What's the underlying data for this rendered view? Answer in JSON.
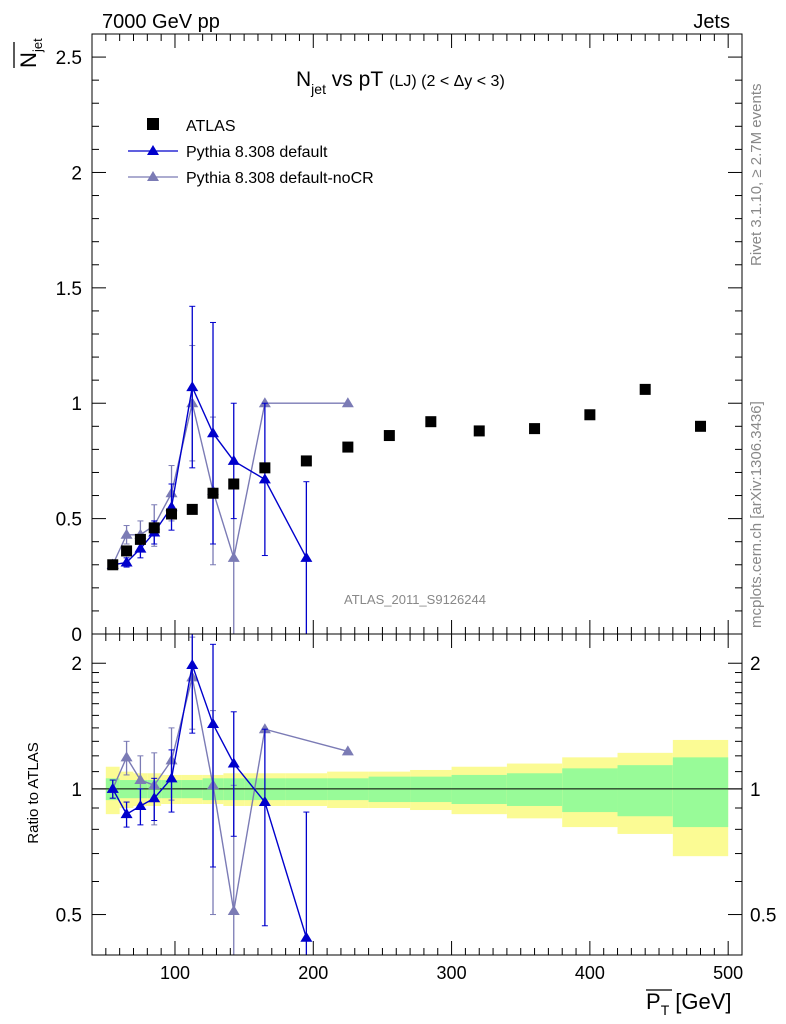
{
  "header": {
    "left": "7000 GeV pp",
    "right": "Jets"
  },
  "chart_data": {
    "type": "scatter",
    "title": "N_jet vs pT (LJ) (2 < Δy < 3)",
    "title_main": "N",
    "title_sub": "jet",
    "title_vs": " vs pT",
    "title_detail": "(LJ) (2 < Δy < 3)",
    "ylabel": "N_jet",
    "ylabel_main": "N",
    "ylabel_sub": "jet",
    "ratio_ylabel": "Ratio to ATLAS",
    "xlabel": "P_T [GeV]",
    "xlabel_main": "P",
    "xlabel_sub": "T",
    "xlabel_unit": "[GeV]",
    "watermark": "ATLAS_2011_S9126244",
    "side_text_top": "Rivet 3.1.10, ≥ 2.7M events",
    "side_text_bottom": "mcplots.cern.ch [arXiv:1306.3436]",
    "xlim": [
      40,
      510
    ],
    "ylim": [
      0,
      2.6
    ],
    "ratio_ylim": [
      0.4,
      2.35
    ],
    "ratio_log": true,
    "x_ticks": [
      100,
      200,
      300,
      400,
      500
    ],
    "y_ticks": [
      0,
      0.5,
      1,
      1.5,
      2,
      2.5
    ],
    "y_tick_labels": [
      "0",
      "0.5",
      "1",
      "1.5",
      "2",
      "2.5"
    ],
    "ratio_ticks": [
      0.5,
      1,
      2
    ],
    "ratio_tick_labels": [
      "0.5",
      "1",
      "2"
    ],
    "legend_position": "top-left",
    "series": [
      {
        "name": "ATLAS",
        "color": "#000000",
        "marker": "square",
        "x": [
          55,
          65,
          75,
          85,
          97.5,
          112.5,
          127.5,
          142.5,
          165,
          195,
          225,
          255,
          285,
          320,
          360,
          400,
          440,
          480
        ],
        "y": [
          0.3,
          0.36,
          0.41,
          0.46,
          0.52,
          0.54,
          0.61,
          0.65,
          0.72,
          0.75,
          0.81,
          0.86,
          0.92,
          0.88,
          0.89,
          0.95,
          1.06,
          0.9
        ],
        "xerr": [
          5,
          5,
          5,
          5,
          7.5,
          7.5,
          7.5,
          7.5,
          15,
          15,
          15,
          15,
          15,
          20,
          20,
          20,
          20,
          20
        ],
        "band_inner": [
          0.06,
          0.05,
          0.05,
          0.05,
          0.05,
          0.05,
          0.06,
          0.06,
          0.06,
          0.06,
          0.06,
          0.07,
          0.07,
          0.08,
          0.09,
          0.12,
          0.14,
          0.19
        ],
        "band_outer": [
          0.13,
          0.1,
          0.09,
          0.09,
          0.08,
          0.08,
          0.08,
          0.09,
          0.09,
          0.09,
          0.1,
          0.1,
          0.11,
          0.13,
          0.15,
          0.19,
          0.22,
          0.31
        ]
      },
      {
        "name": "Pythia 8.308 default",
        "color": "#0000cc",
        "marker": "triangle",
        "x": [
          55,
          65,
          75,
          85,
          97.5,
          112.5,
          127.5,
          142.5,
          165,
          195
        ],
        "y": [
          0.3,
          0.31,
          0.37,
          0.44,
          0.55,
          1.07,
          0.87,
          0.75,
          0.67,
          0.33
        ],
        "yerr": [
          0.02,
          0.02,
          0.04,
          0.05,
          0.1,
          0.35,
          0.48,
          0.25,
          0.33,
          0.33
        ]
      },
      {
        "name": "Pythia 8.308 default-noCR",
        "color": "#7b7bb5",
        "marker": "triangle",
        "x": [
          55,
          65,
          75,
          85,
          97.5,
          112.5,
          127.5,
          142.5,
          165,
          225
        ],
        "y": [
          0.3,
          0.43,
          0.43,
          0.47,
          0.61,
          1.0,
          0.62,
          0.33,
          1.0,
          1.0
        ],
        "yerr": [
          0.02,
          0.04,
          0.06,
          0.09,
          0.12,
          0.25,
          0.32,
          0.33,
          0.0,
          0.0
        ]
      }
    ],
    "ratio_series": [
      {
        "name": "Pythia 8.308 default",
        "x": [
          55,
          65,
          75,
          85,
          97.5,
          112.5,
          127.5,
          142.5,
          165,
          195
        ],
        "y": [
          1.0,
          0.87,
          0.91,
          0.95,
          1.06,
          1.98,
          1.43,
          1.15,
          0.93,
          0.44
        ],
        "err_lo": [
          0.05,
          0.06,
          0.09,
          0.11,
          0.18,
          0.62,
          0.78,
          0.38,
          0.46,
          0.44
        ],
        "err_hi": [
          0.05,
          0.06,
          0.09,
          0.11,
          0.18,
          0.65,
          0.79,
          0.38,
          0.46,
          0.44
        ]
      },
      {
        "name": "Pythia 8.308 default-noCR",
        "x": [
          55,
          65,
          75,
          85,
          97.5,
          112.5,
          127.5,
          142.5,
          165,
          225
        ],
        "y": [
          1.0,
          1.19,
          1.05,
          1.02,
          1.17,
          1.85,
          1.02,
          0.51,
          1.39,
          1.23
        ],
        "err_lo": [
          0.05,
          0.11,
          0.15,
          0.2,
          0.23,
          0.46,
          0.52,
          0.51,
          0.0,
          0.0
        ],
        "err_hi": [
          0.05,
          0.11,
          0.15,
          0.2,
          0.23,
          0.46,
          0.52,
          0.51,
          0.0,
          0.0
        ]
      }
    ]
  },
  "colors": {
    "band_inner": "#98fb98",
    "band_outer": "#fbfb94",
    "frame": "#000000",
    "watermark": "#999999"
  }
}
